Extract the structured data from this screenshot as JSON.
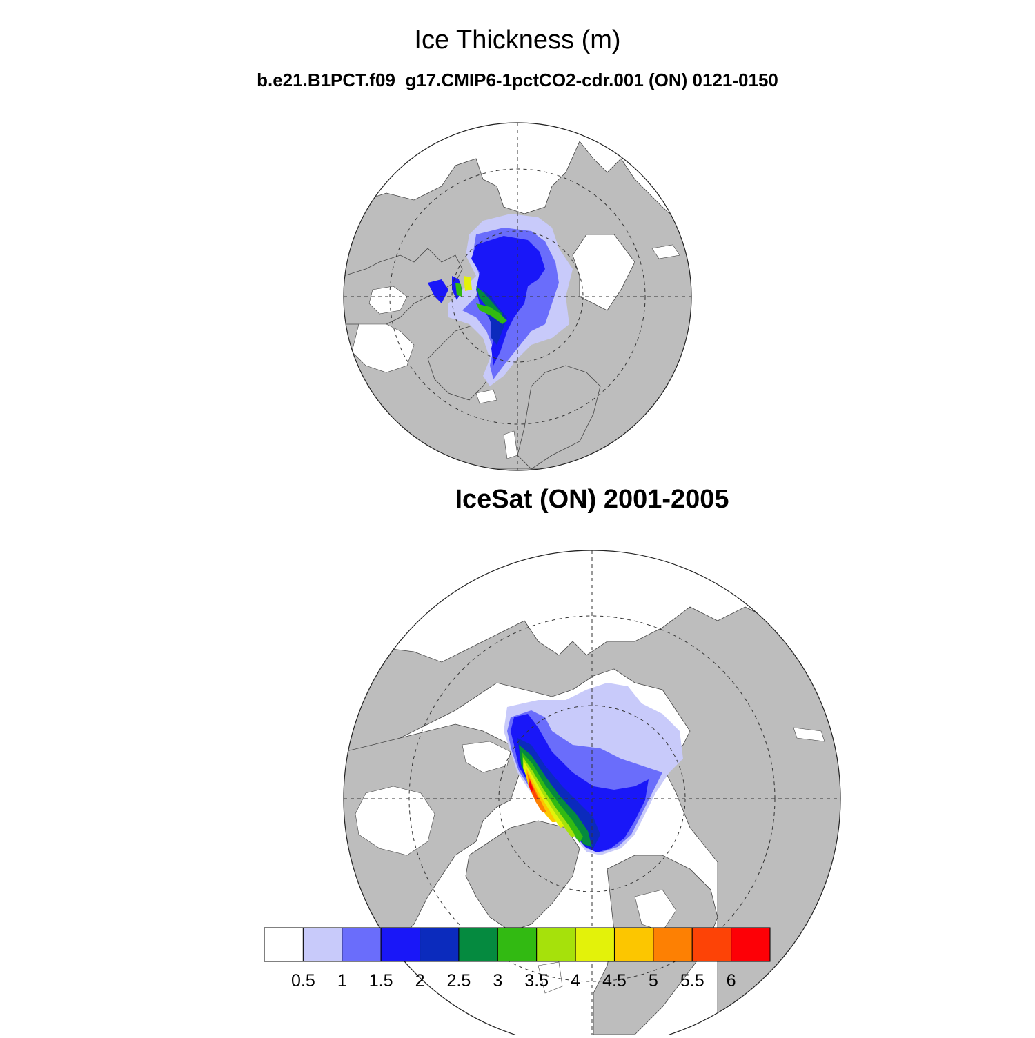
{
  "figure": {
    "title": "Ice Thickness (m)",
    "panels": [
      {
        "title": "b.e21.B1PCT.f09_g17.CMIP6-1pctCO2-cdr.001 (ON) 0121-0150",
        "kind": "model"
      },
      {
        "title": "IceSat (ON) 2001-2005",
        "kind": "observation"
      }
    ]
  },
  "colorbar": {
    "colors": [
      "#ffffff",
      "#c8cafa",
      "#6a6dfb",
      "#1917f8",
      "#0b2bbd",
      "#058a3f",
      "#32ba12",
      "#a6e10b",
      "#e3f20a",
      "#fcc600",
      "#fd8003",
      "#fd4306",
      "#fd0006"
    ],
    "labels": [
      "0.5",
      "1",
      "1.5",
      "2",
      "2.5",
      "3",
      "3.5",
      "4",
      "4.5",
      "5",
      "5.5",
      "6"
    ]
  },
  "colors": {
    "land": "#bdbdbd",
    "ocean": "#ffffff",
    "grid": "#333333"
  }
}
